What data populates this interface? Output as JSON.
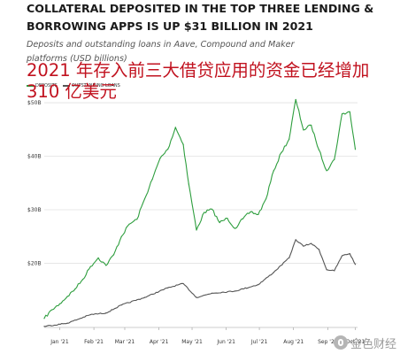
{
  "page": {
    "title": "COLLATERAL DEPOSITED IN THE TOP THREE LENDING & BORROWING APPS IS UP $31 BILLION IN 2021",
    "subtitle": "Deposits and outstanding loans in Aave, Compound and Maker platforms (USD billions)",
    "overlay_caption": "2021 年存入前三大借贷应用的资金已经增加 310 亿美元",
    "watermark_text": "金色财经"
  },
  "legend": [
    {
      "label": "DEPOSITS",
      "color": "#2e9e3e"
    },
    {
      "label": "OUTSTANDING LOANS",
      "color": "#555555"
    }
  ],
  "chart_data": {
    "type": "line",
    "title": "COLLATERAL DEPOSITED IN THE TOP THREE LENDING & BORROWING APPS IS UP $31 BILLION IN 2021",
    "subtitle": "Deposits and outstanding loans in Aave, Compound and Maker platforms (USD billions)",
    "xlabel": "",
    "ylabel": "",
    "x_range": [
      "2021-01-01",
      "2021-10-12"
    ],
    "ylim": [
      8,
      51
    ],
    "x_ticks": [
      {
        "date": "2021-01-15",
        "label": "Jan '21"
      },
      {
        "date": "2021-02-15",
        "label": "Feb '21"
      },
      {
        "date": "2021-03-15",
        "label": "Mar '21"
      },
      {
        "date": "2021-04-15",
        "label": "Apr '21"
      },
      {
        "date": "2021-05-15",
        "label": "May '21"
      },
      {
        "date": "2021-06-15",
        "label": "Jun '21"
      },
      {
        "date": "2021-07-15",
        "label": "Jul '21"
      },
      {
        "date": "2021-08-15",
        "label": "Aug '21"
      },
      {
        "date": "2021-09-15",
        "label": "Sep '21"
      },
      {
        "date": "2021-10-10",
        "label": "Oct '21"
      }
    ],
    "y_ticks": [
      {
        "value": 20,
        "label": "$20B"
      },
      {
        "value": 30,
        "label": "$30B"
      },
      {
        "value": 40,
        "label": "$40B"
      },
      {
        "value": 50,
        "label": "$50B"
      }
    ],
    "grid": true,
    "legend_position": "top-left",
    "series": [
      {
        "name": "DEPOSITS",
        "color": "#2e9e3e",
        "points": [
          [
            "2021-01-01",
            9.7
          ],
          [
            "2021-01-08",
            11.3
          ],
          [
            "2021-01-15",
            12.4
          ],
          [
            "2021-01-22",
            13.8
          ],
          [
            "2021-01-29",
            15.2
          ],
          [
            "2021-02-05",
            17.0
          ],
          [
            "2021-02-12",
            19.4
          ],
          [
            "2021-02-19",
            21.0
          ],
          [
            "2021-02-26",
            19.6
          ],
          [
            "2021-03-05",
            21.6
          ],
          [
            "2021-03-12",
            25.0
          ],
          [
            "2021-03-19",
            27.3
          ],
          [
            "2021-03-26",
            28.2
          ],
          [
            "2021-04-02",
            32.0
          ],
          [
            "2021-04-09",
            35.7
          ],
          [
            "2021-04-16",
            39.6
          ],
          [
            "2021-04-23",
            41.3
          ],
          [
            "2021-04-30",
            45.4
          ],
          [
            "2021-05-07",
            42.2
          ],
          [
            "2021-05-12",
            34.8
          ],
          [
            "2021-05-19",
            26.2
          ],
          [
            "2021-05-26",
            29.5
          ],
          [
            "2021-06-02",
            30.1
          ],
          [
            "2021-06-09",
            27.6
          ],
          [
            "2021-06-16",
            28.4
          ],
          [
            "2021-06-23",
            26.5
          ],
          [
            "2021-06-30",
            28.3
          ],
          [
            "2021-07-07",
            29.6
          ],
          [
            "2021-07-14",
            29.1
          ],
          [
            "2021-07-21",
            32.0
          ],
          [
            "2021-07-28",
            37.3
          ],
          [
            "2021-08-04",
            40.7
          ],
          [
            "2021-08-11",
            43.2
          ],
          [
            "2021-08-17",
            50.6
          ],
          [
            "2021-08-24",
            44.9
          ],
          [
            "2021-08-31",
            45.8
          ],
          [
            "2021-09-07",
            41.2
          ],
          [
            "2021-09-14",
            37.3
          ],
          [
            "2021-09-21",
            39.4
          ],
          [
            "2021-09-28",
            47.9
          ],
          [
            "2021-10-05",
            48.3
          ],
          [
            "2021-10-10",
            41.3
          ]
        ]
      },
      {
        "name": "OUTSTANDING LOANS",
        "color": "#555555",
        "points": [
          [
            "2021-01-01",
            8.2
          ],
          [
            "2021-01-22",
            8.8
          ],
          [
            "2021-02-12",
            10.4
          ],
          [
            "2021-02-26",
            10.7
          ],
          [
            "2021-03-12",
            12.2
          ],
          [
            "2021-04-02",
            13.6
          ],
          [
            "2021-04-23",
            15.4
          ],
          [
            "2021-05-07",
            16.2
          ],
          [
            "2021-05-19",
            13.6
          ],
          [
            "2021-06-02",
            14.4
          ],
          [
            "2021-06-23",
            14.8
          ],
          [
            "2021-07-14",
            16.0
          ],
          [
            "2021-07-28",
            18.3
          ],
          [
            "2021-08-11",
            21.0
          ],
          [
            "2021-08-17",
            24.4
          ],
          [
            "2021-08-24",
            23.2
          ],
          [
            "2021-08-31",
            23.7
          ],
          [
            "2021-09-07",
            22.6
          ],
          [
            "2021-09-14",
            18.8
          ],
          [
            "2021-09-21",
            18.6
          ],
          [
            "2021-09-28",
            21.4
          ],
          [
            "2021-10-05",
            21.8
          ],
          [
            "2021-10-10",
            19.8
          ]
        ]
      }
    ]
  }
}
